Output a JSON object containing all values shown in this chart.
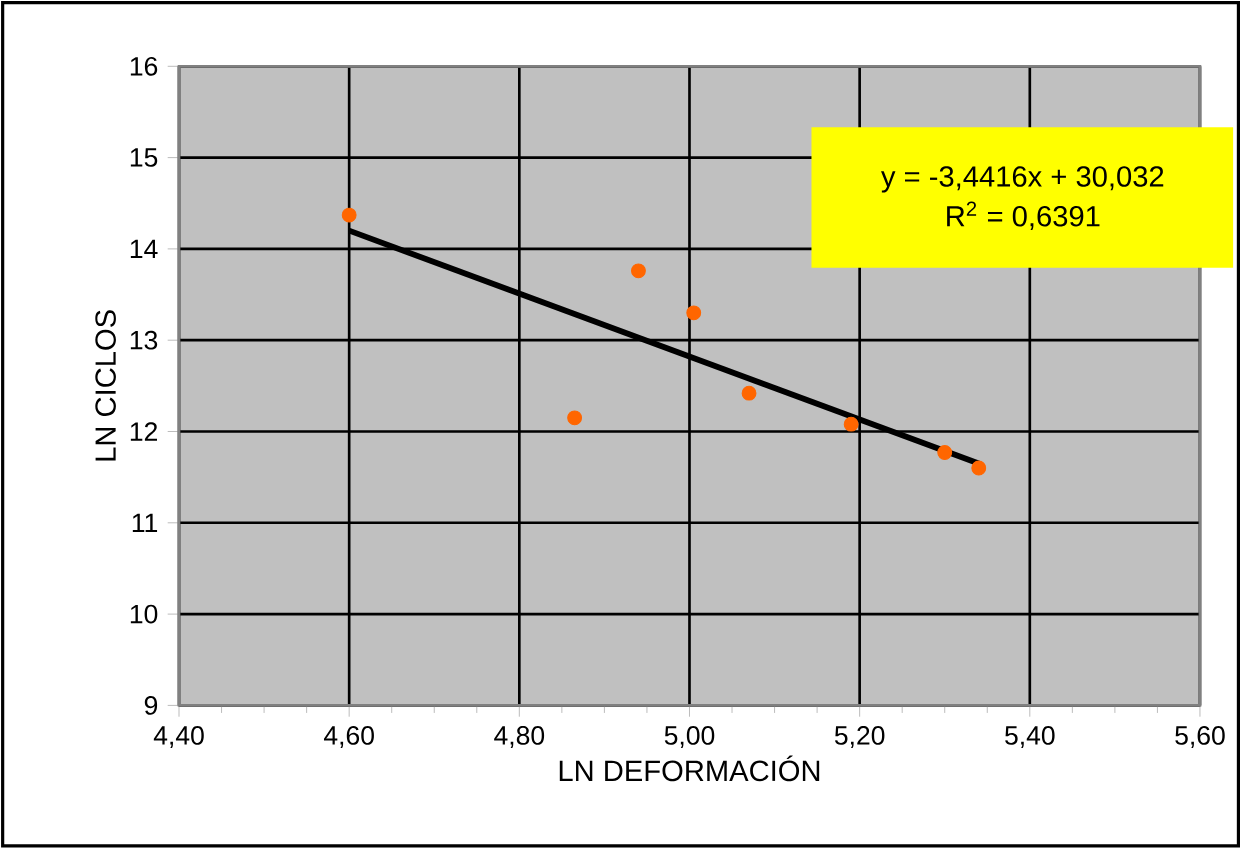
{
  "chart_data": {
    "type": "scatter",
    "xlabel": "LN DEFORMACIÓN",
    "ylabel": "LN CICLOS",
    "series": [
      {
        "color": "#ff6600",
        "marker": "circle",
        "x": [
          4.6,
          4.865,
          4.94,
          5.005,
          5.07,
          5.19,
          5.3,
          5.34
        ],
        "values": [
          14.37,
          12.15,
          13.76,
          13.3,
          12.42,
          12.08,
          11.77,
          11.6
        ]
      },
      {
        "type": "line",
        "color": "#000000",
        "marker": "none",
        "line_style": "solid",
        "x": [
          4.6,
          5.34
        ],
        "values": [
          14.2,
          11.65
        ]
      }
    ],
    "annotations": [
      "y = -3,4416x + 30,032",
      "R$^{2}$ = 0,6391"
    ],
    "xlim": [
      4.4,
      5.6
    ],
    "xticks": [
      {
        "value": 4.4,
        "label": "4,40"
      },
      {
        "value": 4.6,
        "label": "4,60"
      },
      {
        "value": 4.8,
        "label": "4,80"
      },
      {
        "value": 5.0,
        "label": "5,00"
      },
      {
        "value": 5.2,
        "label": "5,20"
      },
      {
        "value": 5.4,
        "label": "5,40"
      },
      {
        "value": 5.6,
        "label": "5,60"
      }
    ],
    "ylim": [
      9,
      16
    ],
    "yticks": [
      9,
      10,
      11,
      12,
      13,
      14,
      15,
      16
    ],
    "grid": true
  }
}
